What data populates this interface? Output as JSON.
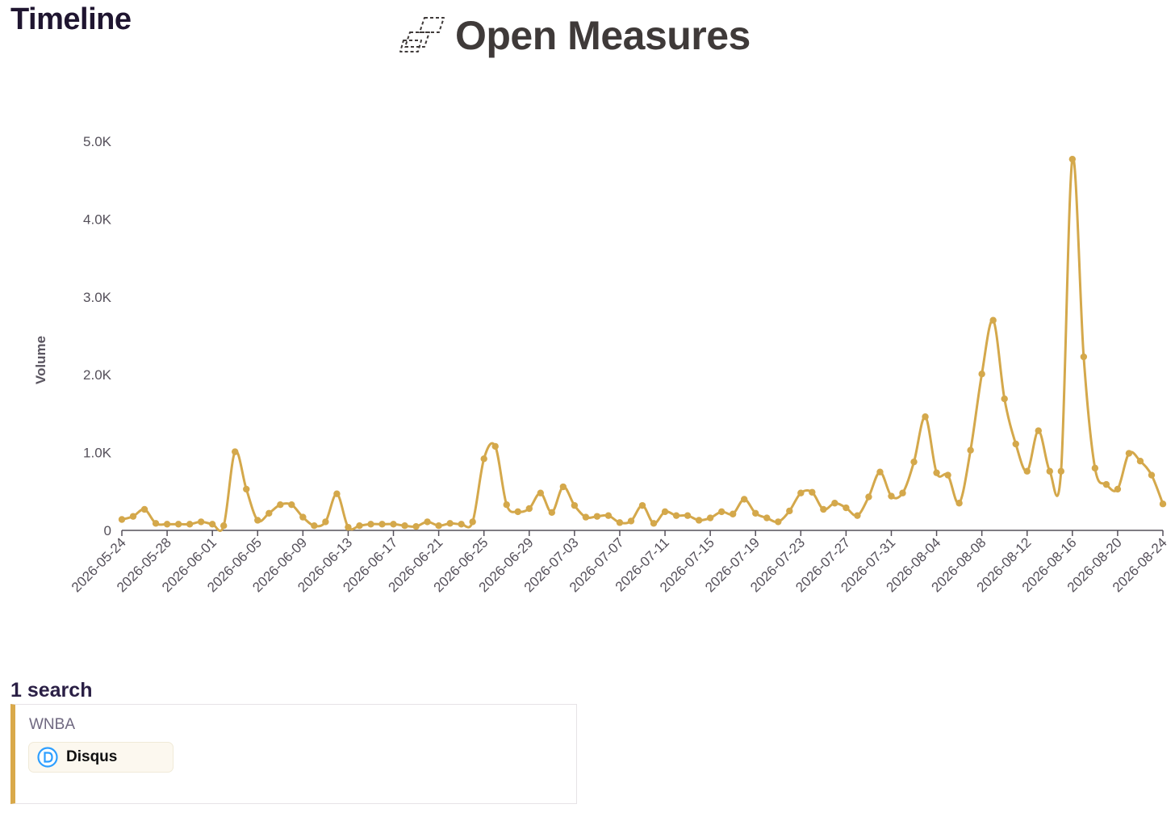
{
  "header": {
    "title": "Timeline",
    "brand_name": "Open Measures",
    "brand_icon": "open-measures-logo-icon"
  },
  "chart_data": {
    "type": "line",
    "title": "",
    "xlabel": "",
    "ylabel": "Volume",
    "x_start": "2026-05-24",
    "x_end": "2026-08-24",
    "ylim": [
      0,
      5000
    ],
    "yticks": [
      0,
      1000,
      2000,
      3000,
      4000,
      5000
    ],
    "ytick_labels": [
      "0",
      "1.0K",
      "2.0K",
      "3.0K",
      "4.0K",
      "5.0K"
    ],
    "xtick_labels": [
      "2026-05-24",
      "2026-05-28",
      "2026-06-01",
      "2026-06-05",
      "2026-06-09",
      "2026-06-13",
      "2026-06-17",
      "2026-06-21",
      "2026-06-25",
      "2026-06-29",
      "2026-07-03",
      "2026-07-07",
      "2026-07-11",
      "2026-07-15",
      "2026-07-19",
      "2026-07-23",
      "2026-07-27",
      "2026-07-31",
      "2026-08-04",
      "2026-08-08",
      "2026-08-12",
      "2026-08-16",
      "2026-08-20",
      "2026-08-24"
    ],
    "grid": false,
    "line_color": "#d4a84b",
    "series": [
      {
        "values": [
          140,
          180,
          270,
          90,
          80,
          80,
          80,
          110,
          80,
          60,
          1010,
          530,
          130,
          220,
          330,
          330,
          170,
          60,
          110,
          470,
          40,
          60,
          80,
          80,
          80,
          60,
          50,
          110,
          60,
          90,
          80,
          110,
          920,
          1080,
          330,
          240,
          280,
          480,
          230,
          560,
          320,
          170,
          180,
          190,
          100,
          120,
          320,
          90,
          240,
          190,
          190,
          130,
          160,
          240,
          210,
          400,
          220,
          160,
          110,
          250,
          480,
          490,
          270,
          350,
          290,
          190,
          430,
          750,
          440,
          480,
          880,
          1460,
          740,
          710,
          350,
          1030,
          2010,
          2700,
          1690,
          1110,
          760,
          1280,
          760,
          760,
          4770,
          2230,
          800,
          590,
          530,
          990,
          890,
          710,
          340
        ]
      }
    ]
  },
  "searches": {
    "title": "1 search",
    "items": [
      {
        "term": "WNBA",
        "source": "Disqus",
        "source_icon": "disqus-icon",
        "accent": "#d9a94a"
      }
    ]
  }
}
